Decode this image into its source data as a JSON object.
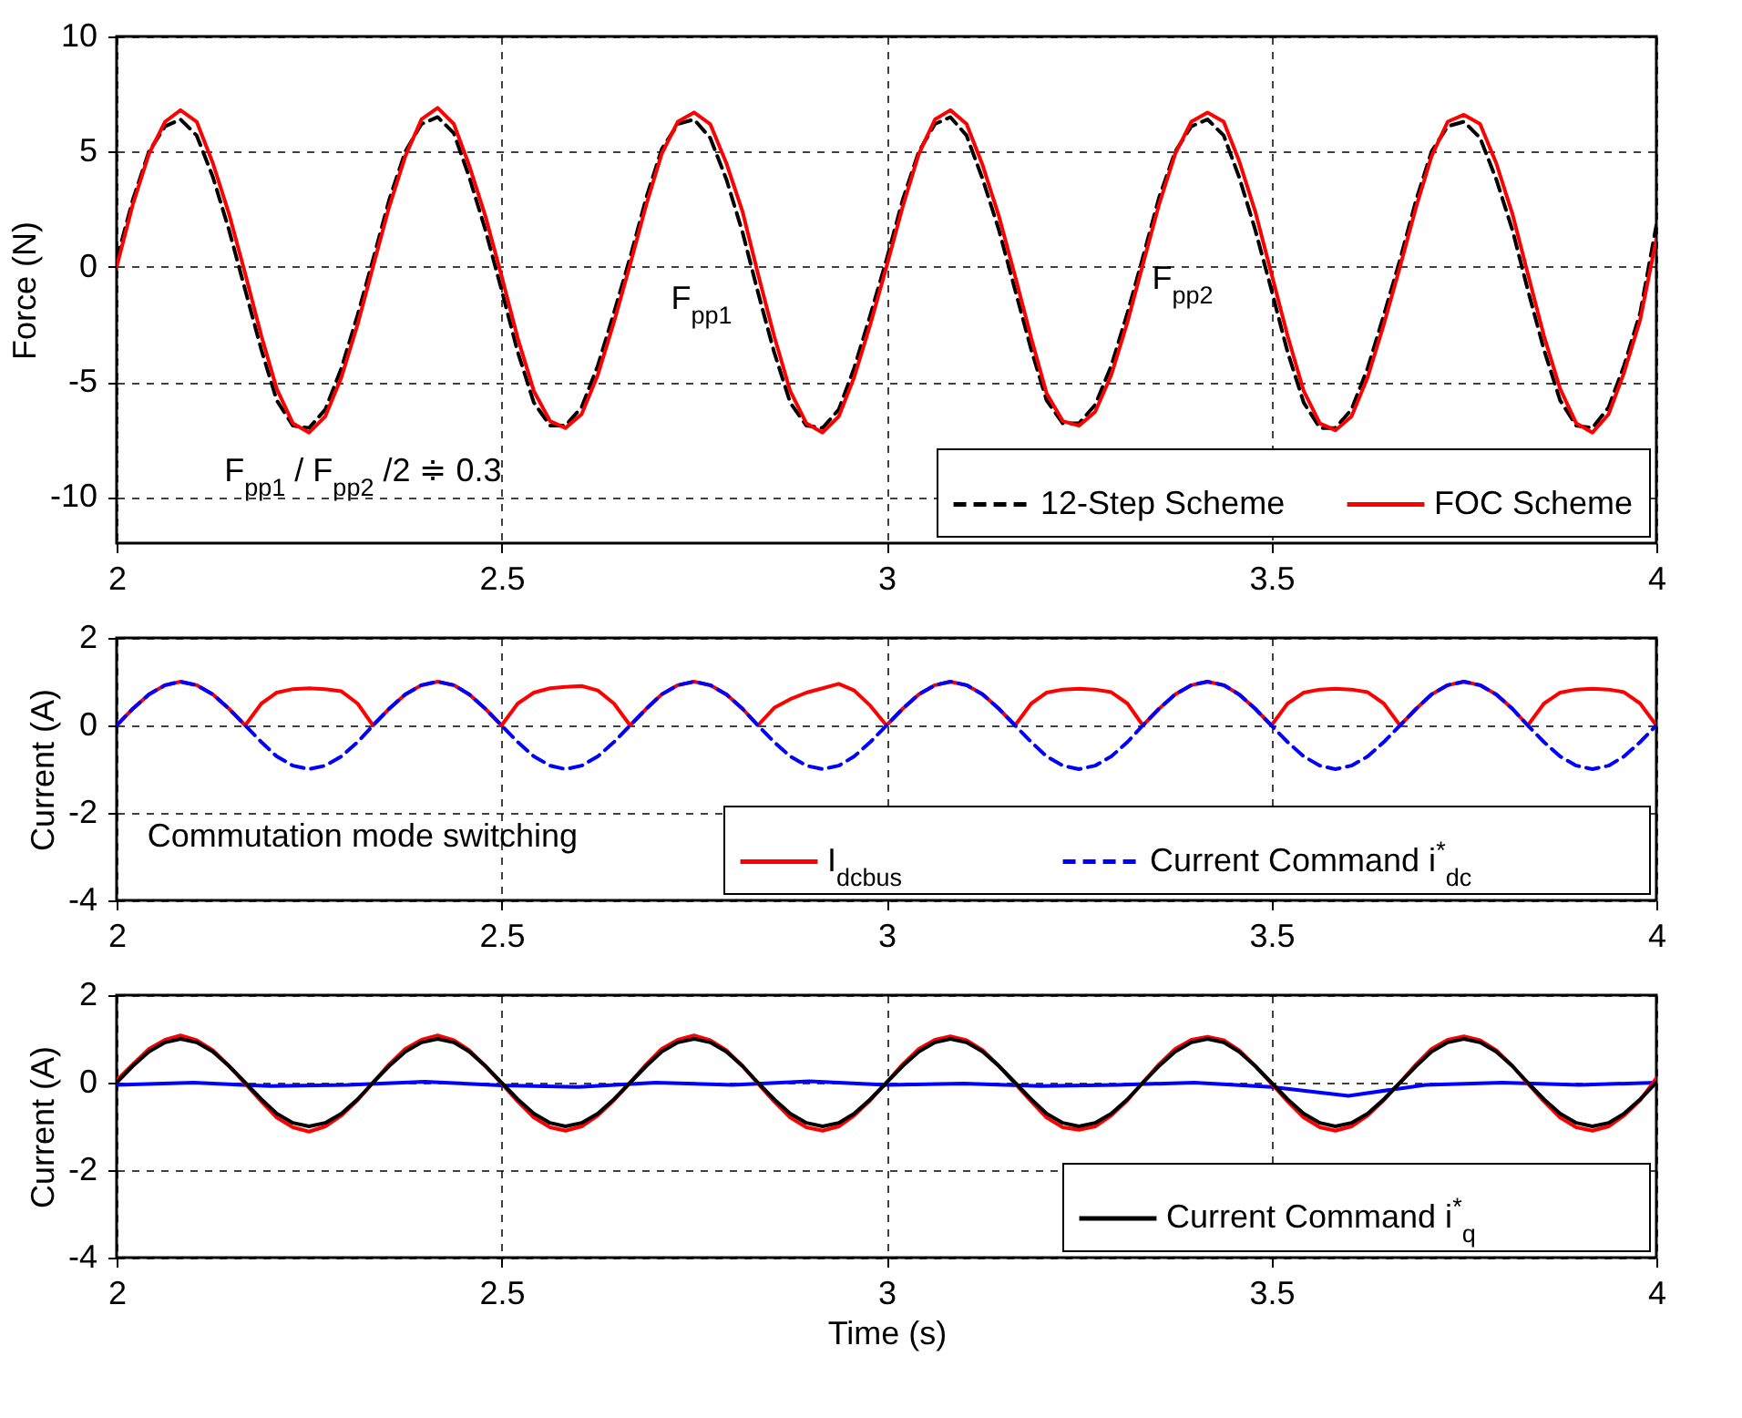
{
  "chart_data": [
    {
      "type": "line",
      "ylabel": "Force (N)",
      "xlim": [
        2,
        4
      ],
      "xticks": [
        2,
        2.5,
        3,
        3.5,
        4
      ],
      "ylim": [
        -12,
        10
      ],
      "yticks": [
        -10,
        -5,
        0,
        5,
        10
      ],
      "grid": true,
      "legend": "bottom right",
      "x": [
        2,
        2.021,
        2.042,
        2.063,
        2.083,
        2.104,
        2.125,
        2.146,
        2.167,
        2.188,
        2.208,
        2.229,
        2.25,
        2.271,
        2.292,
        2.313,
        2.333,
        2.354,
        2.375,
        2.396,
        2.417,
        2.438,
        2.458,
        2.479,
        2.5,
        2.521,
        2.542,
        2.563,
        2.583,
        2.604,
        2.625,
        2.646,
        2.667,
        2.688,
        2.708,
        2.729,
        2.75,
        2.771,
        2.792,
        2.813,
        2.833,
        2.854,
        2.875,
        2.896,
        2.917,
        2.938,
        2.958,
        2.979,
        3,
        3.021,
        3.042,
        3.063,
        3.083,
        3.104,
        3.125,
        3.146,
        3.167,
        3.188,
        3.208,
        3.229,
        3.25,
        3.271,
        3.292,
        3.313,
        3.333,
        3.354,
        3.375,
        3.396,
        3.417,
        3.438,
        3.458,
        3.479,
        3.5,
        3.521,
        3.542,
        3.563,
        3.583,
        3.604,
        3.625,
        3.646,
        3.667,
        3.688,
        3.708,
        3.729,
        3.75,
        3.771,
        3.792,
        3.813,
        3.833,
        3.854,
        3.875,
        3.896,
        3.917,
        3.938,
        3.958,
        3.979,
        4
      ],
      "series": [
        {
          "name": "12-Step Scheme",
          "color": "#000000",
          "line_style": "dashed",
          "values": [
            0.3,
            2.9,
            5.0,
            6.1,
            6.4,
            5.7,
            3.9,
            1.6,
            -1.0,
            -3.6,
            -5.8,
            -6.9,
            -7.0,
            -6.2,
            -4.4,
            -2.1,
            0.3,
            2.9,
            5.0,
            6.2,
            6.5,
            5.8,
            3.9,
            1.6,
            -1.0,
            -3.7,
            -5.9,
            -6.9,
            -6.9,
            -6.1,
            -4.3,
            -2.0,
            0.4,
            3.0,
            5.1,
            6.2,
            6.4,
            5.6,
            3.8,
            1.5,
            -1.1,
            -3.7,
            -5.9,
            -6.9,
            -7.0,
            -6.2,
            -4.4,
            -2.1,
            0.3,
            2.9,
            5.0,
            6.2,
            6.5,
            5.7,
            3.8,
            1.6,
            -1.0,
            -3.6,
            -5.8,
            -6.8,
            -6.8,
            -6.0,
            -4.3,
            -2.0,
            0.4,
            3.0,
            5.0,
            6.1,
            6.4,
            5.7,
            3.9,
            1.6,
            -1.0,
            -3.7,
            -5.9,
            -7.0,
            -7.0,
            -6.2,
            -4.4,
            -2.1,
            0.3,
            2.9,
            5.0,
            6.1,
            6.3,
            5.6,
            3.8,
            1.6,
            -1.0,
            -3.6,
            -5.8,
            -6.9,
            -7.0,
            -6.1,
            -4.3,
            -2.0,
            1.8
          ]
        },
        {
          "name": "FOC Scheme",
          "color": "#ff0000",
          "line_style": "solid",
          "values": [
            0,
            2.7,
            4.9,
            6.3,
            6.8,
            6.3,
            4.5,
            2.3,
            -0.3,
            -3.0,
            -5.3,
            -6.8,
            -7.2,
            -6.5,
            -4.8,
            -2.5,
            0,
            2.6,
            4.8,
            6.4,
            6.9,
            6.2,
            4.4,
            2.2,
            -0.4,
            -3.1,
            -5.4,
            -6.7,
            -7.0,
            -6.4,
            -4.7,
            -2.4,
            0.1,
            2.7,
            4.9,
            6.3,
            6.7,
            6.2,
            4.5,
            2.4,
            -0.3,
            -3.0,
            -5.4,
            -6.8,
            -7.2,
            -6.5,
            -4.8,
            -2.5,
            0,
            2.6,
            4.9,
            6.4,
            6.8,
            6.2,
            4.4,
            2.2,
            -0.4,
            -3.1,
            -5.5,
            -6.7,
            -6.9,
            -6.3,
            -4.7,
            -2.4,
            0.1,
            2.7,
            4.9,
            6.3,
            6.7,
            6.3,
            4.6,
            2.4,
            -0.3,
            -3.0,
            -5.4,
            -6.8,
            -7.1,
            -6.5,
            -4.8,
            -2.5,
            0,
            2.6,
            4.8,
            6.3,
            6.6,
            6.2,
            4.5,
            2.3,
            -0.3,
            -3.0,
            -5.3,
            -6.8,
            -7.2,
            -6.4,
            -4.6,
            -2.3,
            1.2
          ]
        }
      ],
      "annotations": [
        "F$_{pp1}$",
        "F$_{pp2}$",
        "F$_{pp1}$ / F$_{pp2}$ /2 ≑ 0.3"
      ]
    },
    {
      "type": "line",
      "ylabel": "Current (A)",
      "xlim": [
        2,
        4
      ],
      "xticks": [
        2,
        2.5,
        3,
        3.5,
        4
      ],
      "ylim": [
        -4,
        2
      ],
      "yticks": [
        -4,
        -2,
        0,
        2
      ],
      "grid": true,
      "legend": "bottom right",
      "x": [
        2,
        2.021,
        2.042,
        2.063,
        2.083,
        2.104,
        2.125,
        2.146,
        2.167,
        2.188,
        2.208,
        2.229,
        2.25,
        2.271,
        2.292,
        2.313,
        2.333,
        2.354,
        2.375,
        2.396,
        2.417,
        2.438,
        2.458,
        2.479,
        2.5,
        2.521,
        2.542,
        2.563,
        2.583,
        2.604,
        2.625,
        2.646,
        2.667,
        2.688,
        2.708,
        2.729,
        2.75,
        2.771,
        2.792,
        2.813,
        2.833,
        2.854,
        2.875,
        2.896,
        2.917,
        2.938,
        2.958,
        2.979,
        3,
        3.021,
        3.042,
        3.063,
        3.083,
        3.104,
        3.125,
        3.146,
        3.167,
        3.188,
        3.208,
        3.229,
        3.25,
        3.271,
        3.292,
        3.313,
        3.333,
        3.354,
        3.375,
        3.396,
        3.417,
        3.438,
        3.458,
        3.479,
        3.5,
        3.521,
        3.542,
        3.563,
        3.583,
        3.604,
        3.625,
        3.646,
        3.667,
        3.688,
        3.708,
        3.729,
        3.75,
        3.771,
        3.792,
        3.813,
        3.833,
        3.854,
        3.875,
        3.896,
        3.917,
        3.938,
        3.958,
        3.979,
        4
      ],
      "series": [
        {
          "name": "I$_{dcbus}$",
          "color": "#ff0000",
          "line_style": "solid",
          "values": [
            0,
            0.38,
            0.71,
            0.92,
            1.0,
            0.92,
            0.71,
            0.38,
            0,
            0.5,
            0.75,
            0.83,
            0.85,
            0.83,
            0.78,
            0.5,
            0,
            0.38,
            0.71,
            0.92,
            1.0,
            0.92,
            0.71,
            0.38,
            0,
            0.5,
            0.75,
            0.85,
            0.88,
            0.9,
            0.8,
            0.5,
            0,
            0.38,
            0.71,
            0.92,
            1.0,
            0.92,
            0.71,
            0.38,
            0,
            0.4,
            0.6,
            0.75,
            0.85,
            0.95,
            0.8,
            0.45,
            0,
            0.38,
            0.71,
            0.92,
            1.0,
            0.92,
            0.71,
            0.38,
            0,
            0.5,
            0.75,
            0.82,
            0.84,
            0.82,
            0.76,
            0.5,
            0,
            0.38,
            0.71,
            0.92,
            1.0,
            0.92,
            0.71,
            0.38,
            0,
            0.5,
            0.75,
            0.82,
            0.84,
            0.82,
            0.76,
            0.5,
            0,
            0.38,
            0.71,
            0.92,
            1.0,
            0.92,
            0.71,
            0.38,
            0,
            0.5,
            0.75,
            0.82,
            0.84,
            0.82,
            0.76,
            0.5,
            0
          ]
        },
        {
          "name": "Current Command i$^{*}$$_{dc}$",
          "color": "#0000ff",
          "line_style": "dashed",
          "values": [
            0,
            0.38,
            0.71,
            0.92,
            1,
            0.92,
            0.71,
            0.38,
            0,
            -0.38,
            -0.71,
            -0.92,
            -1,
            -0.92,
            -0.71,
            -0.38,
            0,
            0.38,
            0.71,
            0.92,
            1,
            0.92,
            0.71,
            0.38,
            0,
            -0.38,
            -0.71,
            -0.92,
            -1,
            -0.92,
            -0.71,
            -0.38,
            0,
            0.38,
            0.71,
            0.92,
            1,
            0.92,
            0.71,
            0.38,
            0,
            -0.38,
            -0.71,
            -0.92,
            -1,
            -0.92,
            -0.71,
            -0.38,
            0,
            0.38,
            0.71,
            0.92,
            1,
            0.92,
            0.71,
            0.38,
            0,
            -0.38,
            -0.71,
            -0.92,
            -1,
            -0.92,
            -0.71,
            -0.38,
            0,
            0.38,
            0.71,
            0.92,
            1,
            0.92,
            0.71,
            0.38,
            0,
            -0.38,
            -0.71,
            -0.92,
            -1,
            -0.92,
            -0.71,
            -0.38,
            0,
            0.38,
            0.71,
            0.92,
            1,
            0.92,
            0.71,
            0.38,
            0,
            -0.38,
            -0.71,
            -0.92,
            -1,
            -0.92,
            -0.71,
            -0.38,
            0
          ]
        }
      ],
      "annotations": [
        "Commutation mode switching"
      ]
    },
    {
      "type": "line",
      "xlabel": "Time (s)",
      "ylabel": "Current (A)",
      "xlim": [
        2,
        4
      ],
      "xticks": [
        2,
        2.5,
        3,
        3.5,
        4
      ],
      "ylim": [
        -4,
        2
      ],
      "yticks": [
        -4,
        -2,
        0,
        2
      ],
      "grid": true,
      "legend": "bottom right",
      "x": [
        2,
        2.021,
        2.042,
        2.063,
        2.083,
        2.104,
        2.125,
        2.146,
        2.167,
        2.188,
        2.208,
        2.229,
        2.25,
        2.271,
        2.292,
        2.313,
        2.333,
        2.354,
        2.375,
        2.396,
        2.417,
        2.438,
        2.458,
        2.479,
        2.5,
        2.521,
        2.542,
        2.563,
        2.583,
        2.604,
        2.625,
        2.646,
        2.667,
        2.688,
        2.708,
        2.729,
        2.75,
        2.771,
        2.792,
        2.813,
        2.833,
        2.854,
        2.875,
        2.896,
        2.917,
        2.938,
        2.958,
        2.979,
        3,
        3.021,
        3.042,
        3.063,
        3.083,
        3.104,
        3.125,
        3.146,
        3.167,
        3.188,
        3.208,
        3.229,
        3.25,
        3.271,
        3.292,
        3.313,
        3.333,
        3.354,
        3.375,
        3.396,
        3.417,
        3.438,
        3.458,
        3.479,
        3.5,
        3.521,
        3.542,
        3.563,
        3.583,
        3.604,
        3.625,
        3.646,
        3.667,
        3.688,
        3.708,
        3.729,
        3.75,
        3.771,
        3.792,
        3.813,
        3.833,
        3.854,
        3.875,
        3.896,
        3.917,
        3.938,
        3.958,
        3.979,
        4
      ],
      "series": [
        {
          "color": "#0000ff",
          "line_style": "solid",
          "x": [
            2,
            2.1,
            2.2,
            2.3,
            2.4,
            2.5,
            2.6,
            2.7,
            2.8,
            2.9,
            3,
            3.1,
            3.2,
            3.3,
            3.4,
            3.5,
            3.6,
            3.7,
            3.8,
            3.9,
            4
          ],
          "values": [
            -0.05,
            0,
            -0.08,
            -0.05,
            0.02,
            -0.06,
            -0.1,
            0,
            -0.05,
            0.03,
            -0.05,
            -0.02,
            -0.08,
            -0.05,
            0,
            -0.1,
            -0.3,
            -0.05,
            0,
            -0.05,
            0
          ]
        },
        {
          "color": "#ff0000",
          "line_style": "solid",
          "values": [
            0.05,
            0.42,
            0.77,
            0.98,
            1.08,
            0.97,
            0.74,
            0.38,
            -0.02,
            -0.43,
            -0.8,
            -1.02,
            -1.12,
            -1.0,
            -0.75,
            -0.4,
            0,
            0.42,
            0.77,
            0.98,
            1.08,
            0.97,
            0.74,
            0.38,
            -0.02,
            -0.43,
            -0.8,
            -1.02,
            -1.1,
            -1.0,
            -0.75,
            -0.4,
            0,
            0.42,
            0.77,
            0.98,
            1.08,
            0.97,
            0.74,
            0.38,
            -0.02,
            -0.43,
            -0.8,
            -1.02,
            -1.1,
            -1.0,
            -0.75,
            -0.4,
            0,
            0.42,
            0.77,
            0.98,
            1.06,
            0.97,
            0.74,
            0.38,
            -0.02,
            -0.43,
            -0.8,
            -1.02,
            -1.08,
            -1.0,
            -0.75,
            -0.4,
            0,
            0.42,
            0.77,
            0.98,
            1.05,
            0.97,
            0.74,
            0.38,
            -0.02,
            -0.43,
            -0.8,
            -1.02,
            -1.1,
            -1.0,
            -0.75,
            -0.4,
            0,
            0.42,
            0.77,
            0.98,
            1.06,
            0.97,
            0.74,
            0.38,
            -0.02,
            -0.43,
            -0.8,
            -1.02,
            -1.1,
            -1.0,
            -0.75,
            -0.4,
            0.1
          ]
        },
        {
          "name": "Current Command i$^{*}$$_{q}$",
          "color": "#000000",
          "line_style": "solid",
          "values": [
            0,
            0.38,
            0.71,
            0.92,
            1,
            0.92,
            0.71,
            0.38,
            0,
            -0.38,
            -0.71,
            -0.92,
            -1,
            -0.92,
            -0.71,
            -0.38,
            0,
            0.38,
            0.71,
            0.92,
            1,
            0.92,
            0.71,
            0.38,
            0,
            -0.38,
            -0.71,
            -0.92,
            -1,
            -0.92,
            -0.71,
            -0.38,
            0,
            0.38,
            0.71,
            0.92,
            1,
            0.92,
            0.71,
            0.38,
            0,
            -0.38,
            -0.71,
            -0.92,
            -1,
            -0.92,
            -0.71,
            -0.38,
            0,
            0.38,
            0.71,
            0.92,
            1,
            0.92,
            0.71,
            0.38,
            0,
            -0.38,
            -0.71,
            -0.92,
            -1,
            -0.92,
            -0.71,
            -0.38,
            0,
            0.38,
            0.71,
            0.92,
            1,
            0.92,
            0.71,
            0.38,
            0,
            -0.38,
            -0.71,
            -0.92,
            -1,
            -0.92,
            -0.71,
            -0.38,
            0,
            0.38,
            0.71,
            0.92,
            1,
            0.92,
            0.71,
            0.38,
            0,
            -0.38,
            -0.71,
            -0.92,
            -1,
            -0.92,
            -0.71,
            -0.38,
            0
          ]
        }
      ]
    }
  ]
}
